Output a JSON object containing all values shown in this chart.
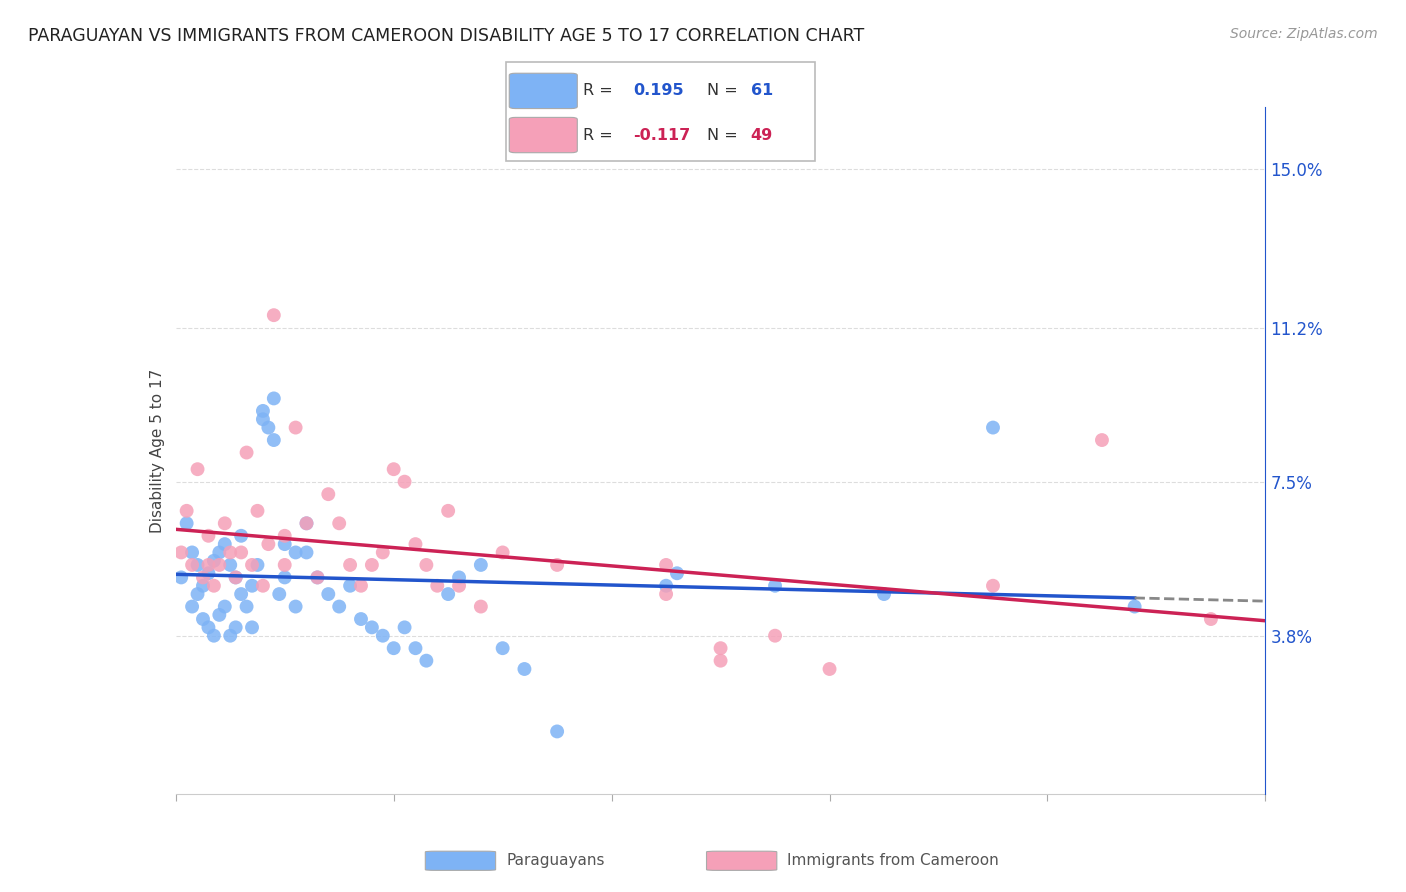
{
  "title": "PARAGUAYAN VS IMMIGRANTS FROM CAMEROON DISABILITY AGE 5 TO 17 CORRELATION CHART",
  "source": "Source: ZipAtlas.com",
  "ylabel": "Disability Age 5 to 17",
  "xmin": 0.0,
  "xmax": 10.0,
  "ymin": 0.0,
  "ymax": 16.5,
  "yticks": [
    3.8,
    7.5,
    11.2,
    15.0
  ],
  "ytick_labels": [
    "3.8%",
    "7.5%",
    "11.2%",
    "15.0%"
  ],
  "legend_labels": [
    "Paraguayans",
    "Immigrants from Cameroon"
  ],
  "blue_color": "#7eb3f5",
  "pink_color": "#f5a0b8",
  "blue_line_color": "#2255cc",
  "pink_line_color": "#cc2255",
  "R_blue": 0.195,
  "N_blue": 61,
  "R_pink": -0.117,
  "N_pink": 49,
  "blue_x": [
    0.05,
    0.1,
    0.15,
    0.15,
    0.2,
    0.2,
    0.25,
    0.25,
    0.3,
    0.3,
    0.35,
    0.35,
    0.4,
    0.4,
    0.45,
    0.45,
    0.5,
    0.5,
    0.55,
    0.55,
    0.6,
    0.6,
    0.65,
    0.7,
    0.7,
    0.75,
    0.8,
    0.8,
    0.85,
    0.9,
    0.9,
    0.95,
    1.0,
    1.0,
    1.1,
    1.1,
    1.2,
    1.2,
    1.3,
    1.4,
    1.5,
    1.6,
    1.7,
    1.8,
    1.9,
    2.0,
    2.1,
    2.2,
    2.3,
    2.5,
    2.6,
    2.8,
    3.0,
    3.2,
    3.5,
    4.5,
    4.6,
    5.5,
    6.5,
    7.5,
    8.8
  ],
  "blue_y": [
    5.2,
    6.5,
    5.8,
    4.5,
    5.5,
    4.8,
    5.0,
    4.2,
    5.3,
    4.0,
    5.6,
    3.8,
    5.8,
    4.3,
    6.0,
    4.5,
    5.5,
    3.8,
    5.2,
    4.0,
    6.2,
    4.8,
    4.5,
    5.0,
    4.0,
    5.5,
    9.0,
    9.2,
    8.8,
    9.5,
    8.5,
    4.8,
    6.0,
    5.2,
    5.8,
    4.5,
    6.5,
    5.8,
    5.2,
    4.8,
    4.5,
    5.0,
    4.2,
    4.0,
    3.8,
    3.5,
    4.0,
    3.5,
    3.2,
    4.8,
    5.2,
    5.5,
    3.5,
    3.0,
    1.5,
    5.0,
    5.3,
    5.0,
    4.8,
    8.8,
    4.5
  ],
  "pink_x": [
    0.05,
    0.1,
    0.15,
    0.2,
    0.25,
    0.3,
    0.3,
    0.35,
    0.4,
    0.45,
    0.5,
    0.55,
    0.6,
    0.65,
    0.7,
    0.75,
    0.8,
    0.85,
    0.9,
    1.0,
    1.0,
    1.1,
    1.2,
    1.3,
    1.4,
    1.5,
    1.6,
    1.7,
    1.8,
    1.9,
    2.0,
    2.1,
    2.2,
    2.3,
    2.4,
    2.5,
    2.6,
    2.8,
    3.0,
    3.5,
    4.5,
    4.5,
    5.0,
    5.0,
    5.5,
    6.0,
    7.5,
    8.5,
    9.5
  ],
  "pink_y": [
    5.8,
    6.8,
    5.5,
    7.8,
    5.2,
    5.5,
    6.2,
    5.0,
    5.5,
    6.5,
    5.8,
    5.2,
    5.8,
    8.2,
    5.5,
    6.8,
    5.0,
    6.0,
    11.5,
    5.5,
    6.2,
    8.8,
    6.5,
    5.2,
    7.2,
    6.5,
    5.5,
    5.0,
    5.5,
    5.8,
    7.8,
    7.5,
    6.0,
    5.5,
    5.0,
    6.8,
    5.0,
    4.5,
    5.8,
    5.5,
    4.8,
    5.5,
    3.2,
    3.5,
    3.8,
    3.0,
    5.0,
    8.5,
    4.2
  ]
}
